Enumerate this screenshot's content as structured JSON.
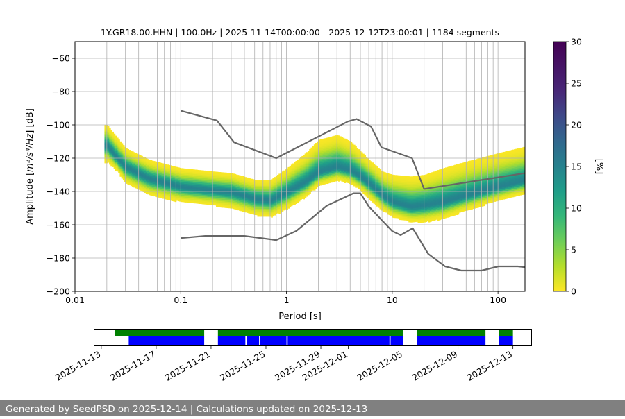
{
  "chart_data": {
    "type": "heatmap",
    "title": "1Y.GR18.00.HHN | 100.0Hz | 2025-11-14T00:00:00 - 2025-12-12T23:00:01 | 1184 segments",
    "xlabel": "Period [s]",
    "ylabel_prefix": "Amplitude [",
    "ylabel_math": "m²/s⁴/Hz",
    "ylabel_suffix": "] [dB]",
    "xscale": "log",
    "xlim": [
      0.01,
      180
    ],
    "ylim": [
      -200,
      -50
    ],
    "xticks": [
      {
        "v": 0.01,
        "label": "0.01"
      },
      {
        "v": 0.1,
        "label": "0.1"
      },
      {
        "v": 1,
        "label": "1"
      },
      {
        "v": 10,
        "label": "10"
      },
      {
        "v": 100,
        "label": "100"
      }
    ],
    "yticks": [
      {
        "v": -200,
        "label": "−200"
      },
      {
        "v": -180,
        "label": "−180"
      },
      {
        "v": -160,
        "label": "−160"
      },
      {
        "v": -140,
        "label": "−140"
      },
      {
        "v": -120,
        "label": "−120"
      },
      {
        "v": -100,
        "label": "−100"
      },
      {
        "v": -80,
        "label": "−80"
      },
      {
        "v": -60,
        "label": "−60"
      }
    ],
    "grid_periods": [
      0.02,
      0.03,
      0.04,
      0.05,
      0.06,
      0.07,
      0.08,
      0.09,
      0.1,
      0.2,
      0.3,
      0.4,
      0.5,
      0.6,
      0.7,
      0.8,
      0.9,
      1,
      2,
      3,
      4,
      5,
      6,
      7,
      8,
      9,
      10,
      20,
      30,
      40,
      50,
      60,
      70,
      80,
      90,
      100
    ],
    "pdf_mode": {
      "periods": [
        0.02,
        0.025,
        0.03,
        0.05,
        0.1,
        0.2,
        0.3,
        0.5,
        0.7,
        1,
        1.5,
        2,
        3,
        4,
        5,
        6,
        8,
        10,
        15,
        20,
        30,
        50,
        100,
        180
      ],
      "db": [
        -112,
        -120,
        -125,
        -132,
        -137,
        -139,
        -140,
        -144,
        -145,
        -140,
        -134,
        -128,
        -125,
        -127,
        -131,
        -135,
        -142,
        -146,
        -149,
        -148,
        -146,
        -142,
        -137,
        -133
      ]
    },
    "pdf_spread_db": {
      "upper": [
        12,
        12,
        11,
        11,
        11,
        11,
        11,
        11,
        12,
        14,
        17,
        19,
        19,
        17,
        15,
        14,
        14,
        16,
        18,
        18,
        20,
        20,
        20,
        20
      ],
      "lower": [
        10,
        8,
        10,
        10,
        9,
        9,
        10,
        10,
        10,
        10,
        9,
        8,
        8,
        8,
        8,
        9,
        9,
        9,
        9,
        10,
        10,
        9,
        8,
        8
      ]
    },
    "colorbar": {
      "label": "[%]",
      "min": 0,
      "max": 30,
      "ticks": [
        "0",
        "5",
        "10",
        "15",
        "20",
        "25",
        "30"
      ]
    },
    "nhnm": {
      "periods": [
        0.1,
        0.22,
        0.32,
        0.8,
        3.8,
        4.6,
        6.3,
        7.9,
        15.4,
        20,
        180
      ],
      "db": [
        -91.5,
        -97.4,
        -110.5,
        -120,
        -98,
        -96.5,
        -101,
        -113.5,
        -120,
        -138.5,
        -129
      ]
    },
    "nlnm": {
      "periods": [
        0.1,
        0.17,
        0.4,
        0.8,
        1.24,
        2.4,
        4.3,
        5,
        6,
        10,
        12,
        15.6,
        21.9,
        31.6,
        45,
        70,
        101,
        154,
        180
      ],
      "db": [
        -168,
        -166.7,
        -166.7,
        -169.2,
        -163.7,
        -148.6,
        -141.1,
        -141.1,
        -149,
        -163.8,
        -166.2,
        -162.1,
        -177.5,
        -185,
        -187.5,
        -187.5,
        -185,
        -185,
        -185.5
      ]
    },
    "availability": {
      "date_ticks": [
        "2025-11-13",
        "2025-11-17",
        "2025-11-21",
        "2025-11-25",
        "2025-11-29",
        "2025-12-01",
        "2025-12-05",
        "2025-12-09",
        "2025-12-13"
      ],
      "date_range": [
        "2025-11-12T12:00",
        "2025-12-14T08:00"
      ],
      "data_segments": [
        [
          "2025-11-14T00:00",
          "2025-11-20T12:00"
        ],
        [
          "2025-11-21T12:00",
          "2025-12-05T00:00"
        ],
        [
          "2025-12-06T00:00",
          "2025-12-11T00:00"
        ],
        [
          "2025-12-12T00:00",
          "2025-12-13T00:00"
        ]
      ],
      "psd_segments": [
        [
          "2025-11-15T00:00",
          "2025-11-20T12:00"
        ],
        [
          "2025-11-21T12:00",
          "2025-11-23T12:00"
        ],
        [
          "2025-11-23T14:00",
          "2025-11-24T12:00"
        ],
        [
          "2025-11-24T14:00",
          "2025-11-26T12:00"
        ],
        [
          "2025-11-26T14:00",
          "2025-12-04T00:00"
        ],
        [
          "2025-12-04T02:00",
          "2025-12-05T00:00"
        ],
        [
          "2025-12-06T00:00",
          "2025-12-11T00:00"
        ],
        [
          "2025-12-12T00:00",
          "2025-12-13T00:00"
        ]
      ],
      "data_color": "#008000",
      "psd_color": "#0000ff"
    }
  },
  "footer_text": "Generated by SeedPSD on 2025-12-14 | Calculations updated on 2025-12-13"
}
